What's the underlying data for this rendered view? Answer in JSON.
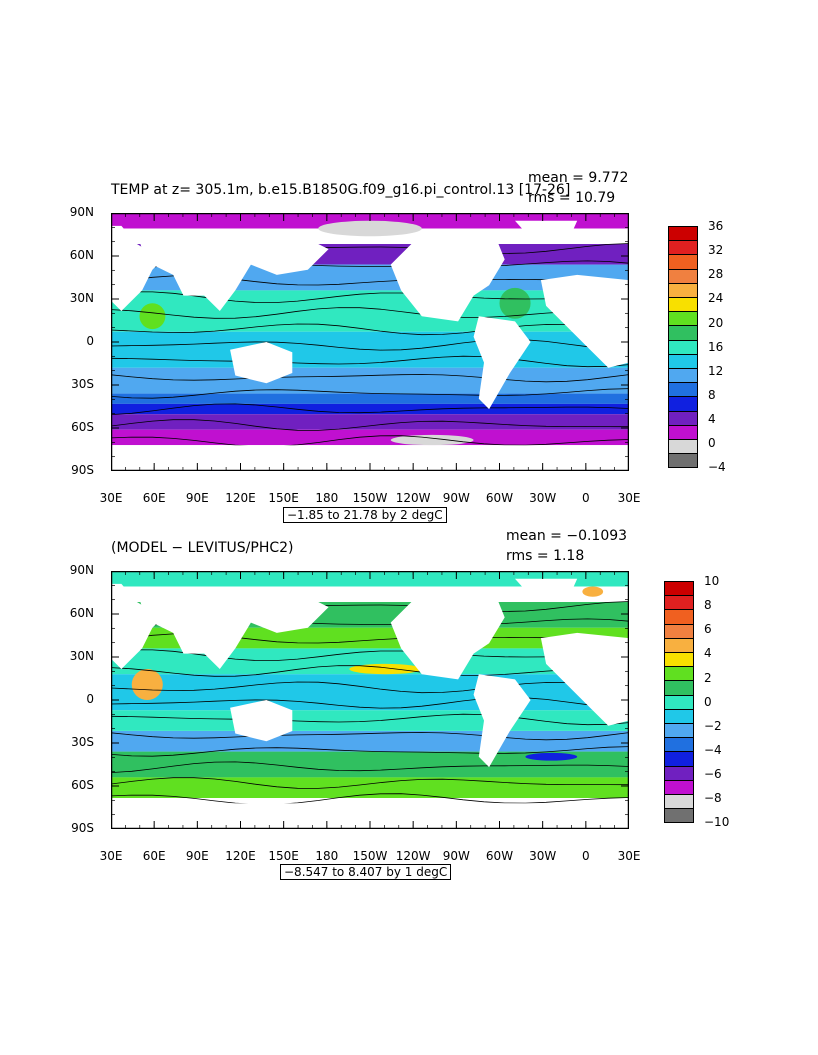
{
  "top_panel": {
    "title": "TEMP at z= 305.1m, b.e15.B1850G.f09_g16.pi_control.13 [17-26]",
    "mean": "mean = 9.772",
    "rms": "rms = 10.79",
    "range": "−1.85 to 21.78 by 2 degC",
    "colorbar": {
      "labels": [
        "36",
        "32",
        "28",
        "24",
        "20",
        "16",
        "12",
        "8",
        "4",
        "0",
        "−4"
      ],
      "colors": [
        "#cc0000",
        "#e02020",
        "#f06020",
        "#f08040",
        "#f8b040",
        "#f8e000",
        "#60e020",
        "#30c060",
        "#30e8c0",
        "#20c8e8",
        "#50a8f0",
        "#2070e0",
        "#1020e0",
        "#7020c0",
        "#c010d0",
        "#d8d8d8",
        "#707070"
      ]
    }
  },
  "bottom_panel": {
    "title": "(MODEL − LEVITUS/PHC2)",
    "mean": "mean = −0.1093",
    "rms": "rms = 1.18",
    "range": "−8.547 to 8.407 by 1 degC",
    "colorbar": {
      "labels": [
        "10",
        "8",
        "6",
        "4",
        "2",
        "0",
        "−2",
        "−4",
        "−6",
        "−8",
        "−10"
      ],
      "colors": [
        "#cc0000",
        "#e02020",
        "#f06020",
        "#f08040",
        "#f8b040",
        "#f8e000",
        "#60e020",
        "#30c060",
        "#30e8c0",
        "#20c8e8",
        "#50a8f0",
        "#2070e0",
        "#1020e0",
        "#7020c0",
        "#c010d0",
        "#d8d8d8",
        "#707070"
      ]
    }
  },
  "lat_ticks": [
    "90N",
    "60N",
    "30N",
    "0",
    "30S",
    "60S",
    "90S"
  ],
  "lon_ticks": [
    "30E",
    "60E",
    "90E",
    "120E",
    "150E",
    "180",
    "150W",
    "120W",
    "90W",
    "60W",
    "30W",
    "0",
    "30E"
  ]
}
